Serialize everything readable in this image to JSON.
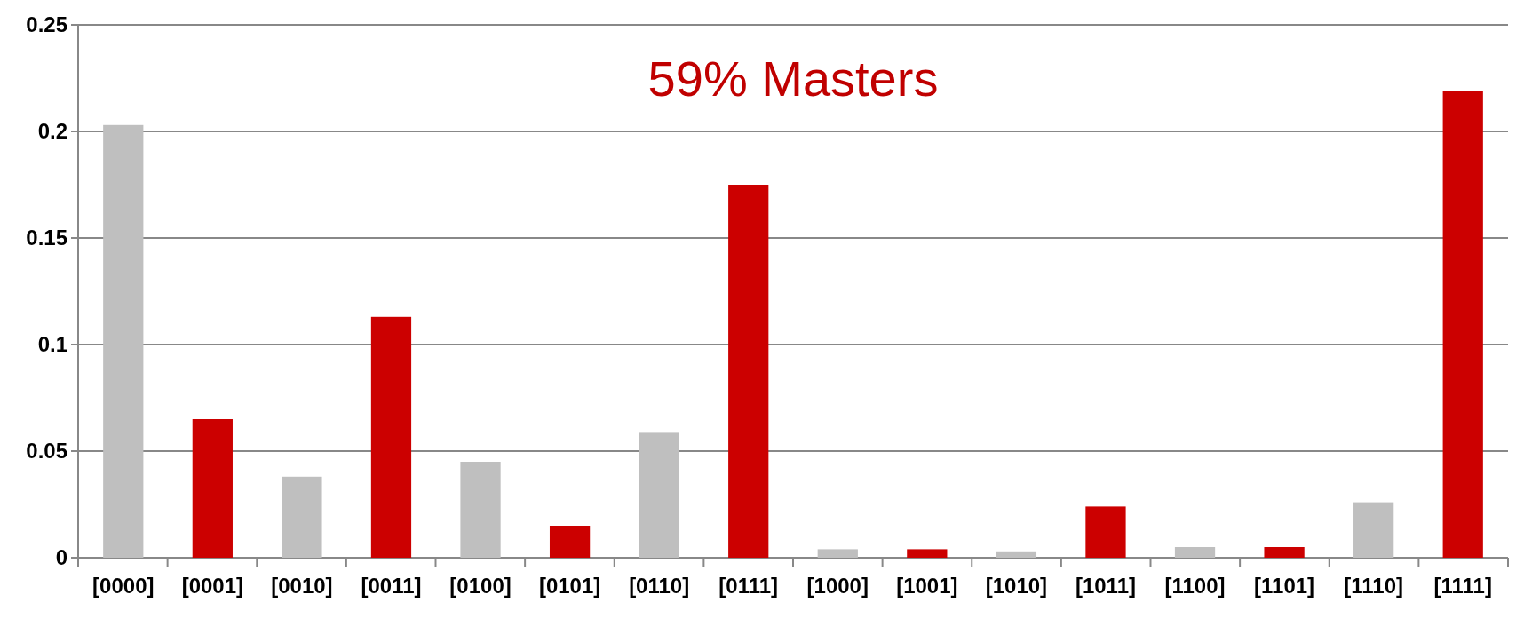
{
  "chart_data": {
    "type": "bar",
    "title": "59% Masters",
    "categories": [
      "[0000]",
      "[0001]",
      "[0010]",
      "[0011]",
      "[0100]",
      "[0101]",
      "[0110]",
      "[0111]",
      "[1000]",
      "[1001]",
      "[1010]",
      "[1011]",
      "[1100]",
      "[1101]",
      "[1110]",
      "[1111]"
    ],
    "values": [
      0.203,
      0.065,
      0.038,
      0.113,
      0.045,
      0.015,
      0.059,
      0.175,
      0.004,
      0.004,
      0.003,
      0.024,
      0.005,
      0.005,
      0.026,
      0.219
    ],
    "colors": [
      "#bfbfbf",
      "#cc0000",
      "#bfbfbf",
      "#cc0000",
      "#bfbfbf",
      "#cc0000",
      "#bfbfbf",
      "#cc0000",
      "#bfbfbf",
      "#cc0000",
      "#bfbfbf",
      "#cc0000",
      "#bfbfbf",
      "#cc0000",
      "#bfbfbf",
      "#cc0000"
    ],
    "ylim": [
      0,
      0.25
    ],
    "yticks": [
      0,
      0.05,
      0.1,
      0.15,
      0.2,
      0.25
    ],
    "grid": "y"
  }
}
